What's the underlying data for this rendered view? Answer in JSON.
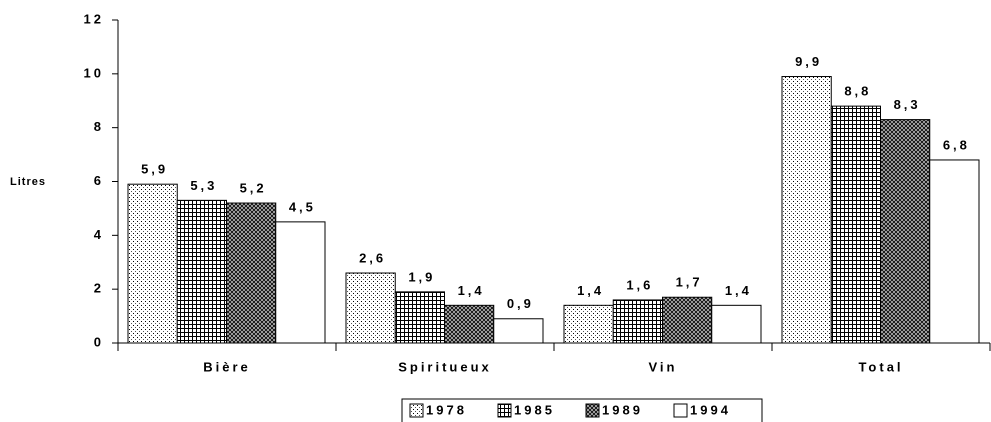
{
  "chart_data": {
    "type": "bar",
    "y_label": "Litres",
    "categories": [
      "Bière",
      "Spiritueux",
      "Vin",
      "Total"
    ],
    "series": [
      {
        "name": "1978",
        "pattern": "dots",
        "values": [
          5.9,
          2.6,
          1.4,
          9.9
        ],
        "value_labels": [
          "5,9",
          "2,6",
          "1,4",
          "9,9"
        ]
      },
      {
        "name": "1985",
        "pattern": "grid",
        "values": [
          5.3,
          1.9,
          1.6,
          8.8
        ],
        "value_labels": [
          "5,3",
          "1,9",
          "1,6",
          "8,8"
        ]
      },
      {
        "name": "1989",
        "pattern": "cross",
        "values": [
          5.2,
          1.4,
          1.7,
          8.3
        ],
        "value_labels": [
          "5,2",
          "1,4",
          "1,7",
          "8,3"
        ]
      },
      {
        "name": "1994",
        "pattern": "plain",
        "values": [
          4.5,
          0.9,
          1.4,
          6.8
        ],
        "value_labels": [
          "4,5",
          "0,9",
          "1,4",
          "6,8"
        ]
      }
    ],
    "ylim": [
      0,
      12
    ],
    "yticks": [
      0,
      2,
      4,
      6,
      8,
      10,
      12
    ],
    "legend": "bottom"
  }
}
